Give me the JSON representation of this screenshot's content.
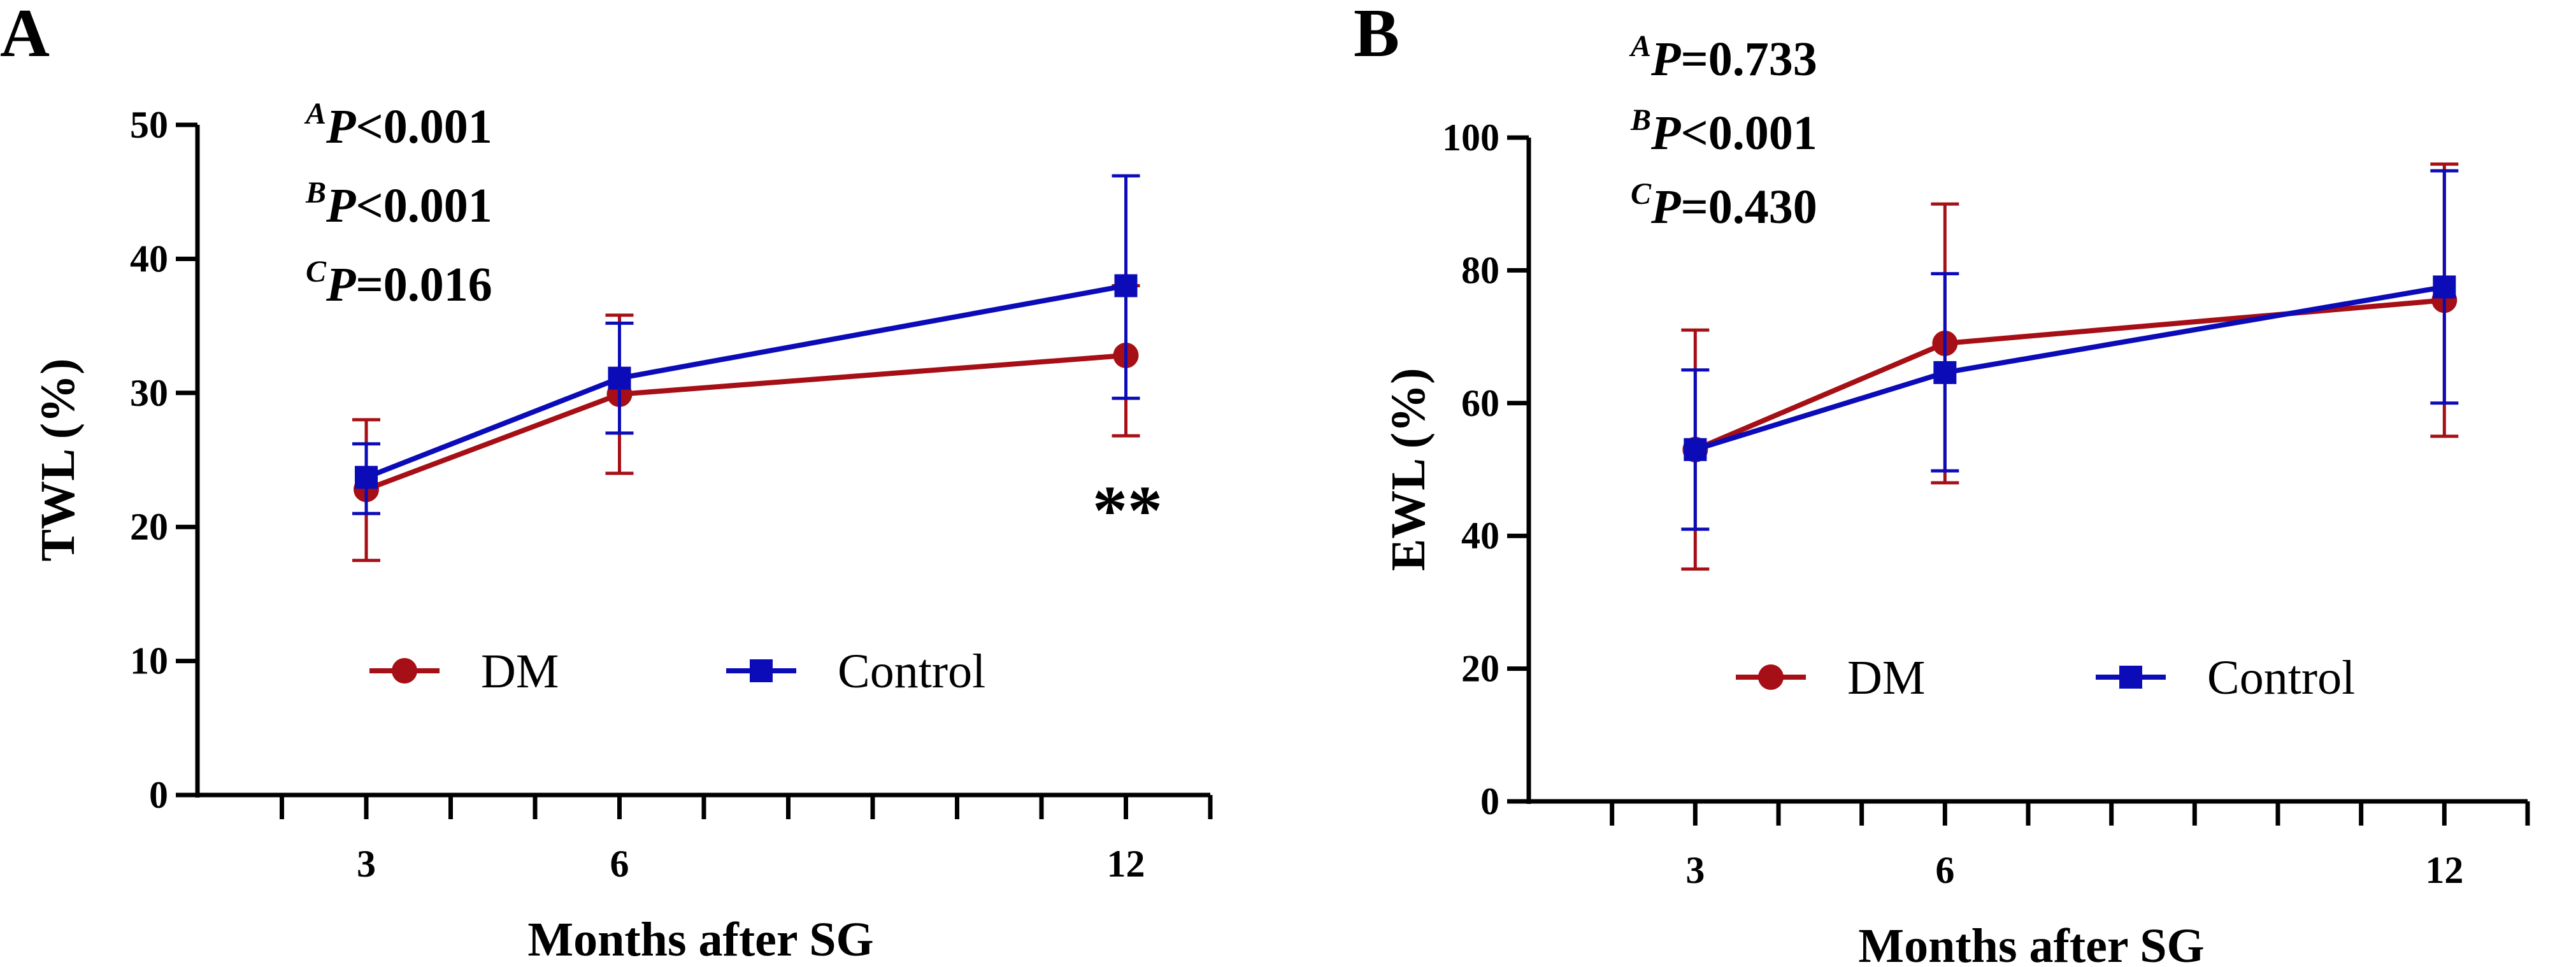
{
  "colors": {
    "DM": "#A50F15",
    "Control": "#0B0BB8",
    "axis": "#000000"
  },
  "chart_data": [
    {
      "panel": "A",
      "type": "line",
      "xlabel": "Months after SG",
      "ylabel": "TWL (%)",
      "ylim": [
        0,
        50
      ],
      "yticks": [
        0,
        10,
        20,
        30,
        40,
        50
      ],
      "xlim": [
        1,
        13
      ],
      "xtick_labels": [
        3,
        6,
        12
      ],
      "x": [
        3,
        6,
        12
      ],
      "series": [
        {
          "name": "DM",
          "values": [
            22.8,
            29.9,
            32.8
          ],
          "err_low": [
            17.5,
            24.0,
            26.8
          ],
          "err_high": [
            28.0,
            35.8,
            38.0
          ]
        },
        {
          "name": "Control",
          "values": [
            23.7,
            31.1,
            38.0
          ],
          "err_low": [
            21.0,
            27.0,
            29.6
          ],
          "err_high": [
            26.2,
            35.2,
            46.2
          ]
        }
      ],
      "pvalues": [
        {
          "sup": "A",
          "p": "P",
          "rest": "<0.001"
        },
        {
          "sup": "B",
          "p": "P",
          "rest": "<0.001"
        },
        {
          "sup": "C",
          "p": "P",
          "rest": "=0.016"
        }
      ],
      "annotation": "**",
      "legend": [
        "DM",
        "Control"
      ]
    },
    {
      "panel": "B",
      "type": "line",
      "xlabel": "Months after SG",
      "ylabel": "EWL (%)",
      "ylim": [
        0,
        100
      ],
      "yticks": [
        0,
        20,
        40,
        60,
        80,
        100
      ],
      "xlim": [
        1,
        13
      ],
      "xtick_labels": [
        3,
        6,
        12
      ],
      "x": [
        3,
        6,
        12
      ],
      "series": [
        {
          "name": "DM",
          "values": [
            53.0,
            69.0,
            75.5
          ],
          "err_low": [
            35.0,
            48.0,
            55.0
          ],
          "err_high": [
            71.0,
            90.0,
            96.0
          ]
        },
        {
          "name": "Control",
          "values": [
            53.0,
            64.6,
            77.5
          ],
          "err_low": [
            41.0,
            49.8,
            60.0
          ],
          "err_high": [
            65.0,
            79.5,
            95.0
          ]
        }
      ],
      "pvalues": [
        {
          "sup": "A",
          "p": "P",
          "rest": "=0.733"
        },
        {
          "sup": "B",
          "p": "P",
          "rest": "<0.001"
        },
        {
          "sup": "C",
          "p": "P",
          "rest": "=0.430"
        }
      ],
      "annotation": "",
      "legend": [
        "DM",
        "Control"
      ]
    }
  ]
}
